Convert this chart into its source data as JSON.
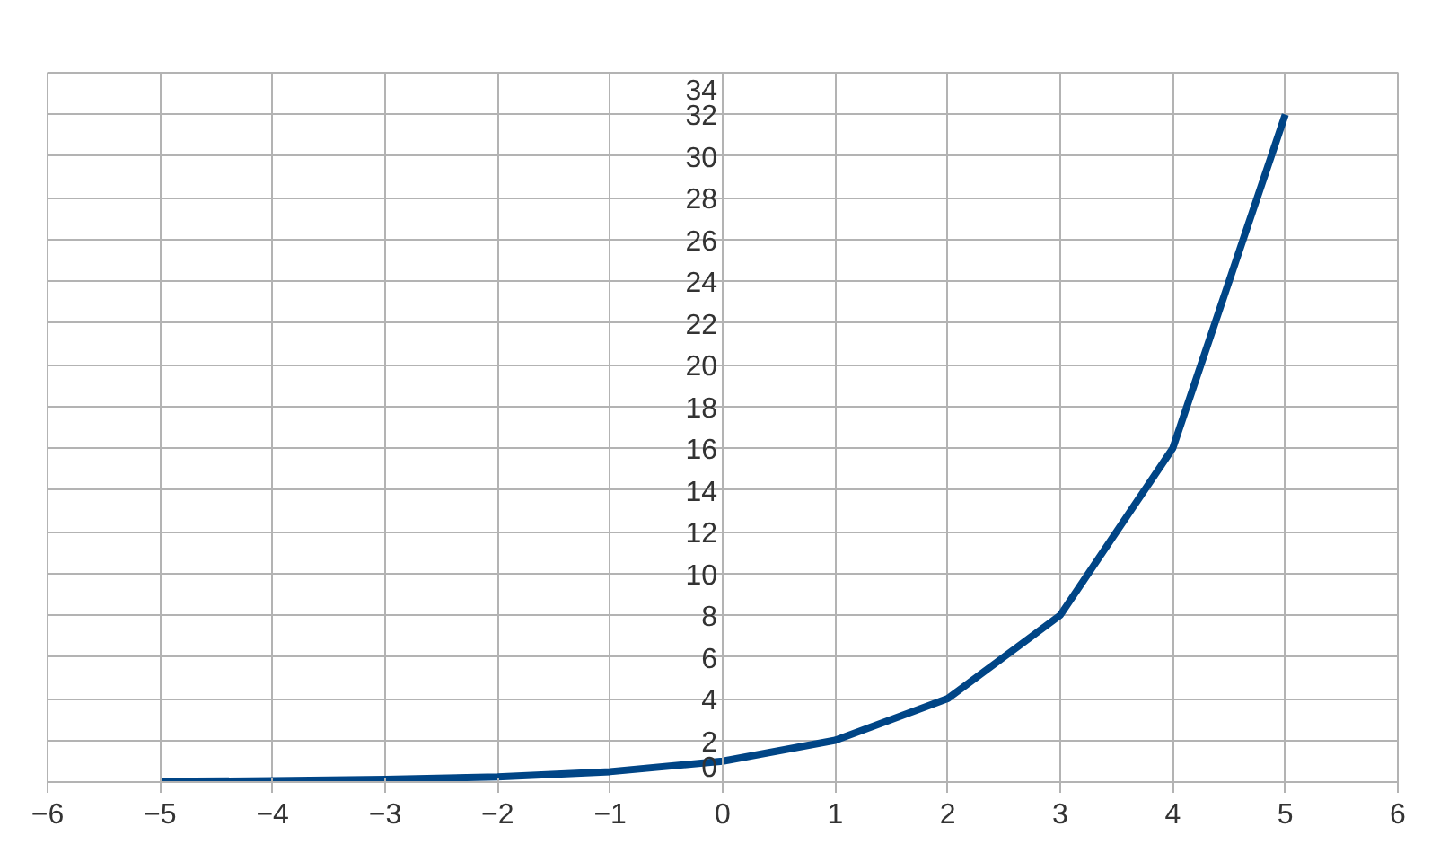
{
  "chart_data": {
    "type": "line",
    "x": [
      -5,
      -4,
      -3,
      -2,
      -1,
      0,
      1,
      2,
      3,
      4,
      5
    ],
    "series": [
      {
        "color": "#004586",
        "values": [
          0.03,
          0.06,
          0.13,
          0.25,
          0.5,
          1,
          2,
          4,
          8,
          16,
          32
        ]
      }
    ],
    "xlim": [
      -6,
      6
    ],
    "xticks": [
      -6,
      -5,
      -4,
      -3,
      -2,
      -1,
      0,
      1,
      2,
      3,
      4,
      5,
      6
    ],
    "ylim": [
      0,
      34
    ],
    "yticks": [
      0,
      2,
      4,
      6,
      8,
      10,
      12,
      14,
      16,
      18,
      20,
      22,
      24,
      26,
      28,
      30,
      32,
      34
    ],
    "grid": true,
    "marker": "none",
    "line_style": "solid"
  }
}
